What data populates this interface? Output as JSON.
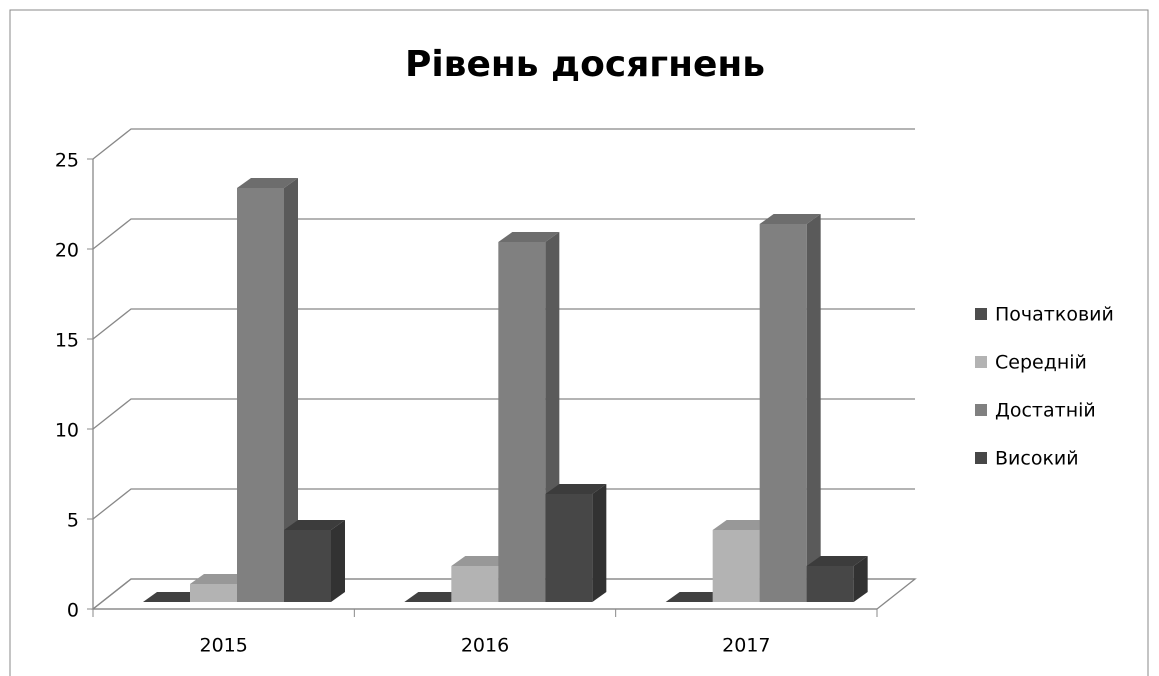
{
  "chart_data": {
    "type": "bar3d",
    "title": "Рівень досягнень",
    "categories": [
      "2015",
      "2016",
      "2017"
    ],
    "series": [
      {
        "name": "Початковий",
        "color": "#4d4d4d",
        "values": [
          0,
          0,
          0
        ]
      },
      {
        "name": "Середній",
        "color": "#b3b3b3",
        "values": [
          1,
          2,
          4
        ]
      },
      {
        "name": "Достатній",
        "color": "#808080",
        "values": [
          23,
          20,
          21
        ]
      },
      {
        "name": "Високий",
        "color": "#474747",
        "values": [
          4,
          6,
          2
        ]
      }
    ],
    "ylim": [
      0,
      25
    ],
    "yticks": [
      0,
      5,
      10,
      15,
      20,
      25
    ],
    "grid": true,
    "legend": "right"
  }
}
